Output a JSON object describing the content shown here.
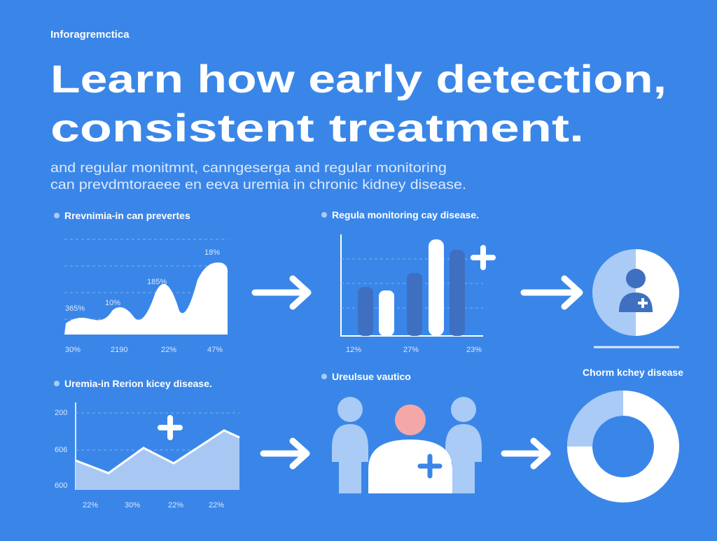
{
  "header": {
    "brand": "Inforagremctica",
    "title": [
      "Learn how early detection,",
      "consistent treatment."
    ],
    "subtitle": [
      "and regular monitmnt, canngeserga and regular monitoring",
      "can prevdmtoraeee en eeva uremia in chronic kidney disease."
    ]
  },
  "panels": [
    {
      "heading": "Rrevnimia-in can prevertes",
      "labels": [
        "18%",
        "185%",
        "10%",
        "365%"
      ],
      "axis_labels": [
        "30%",
        "2190",
        "22%",
        "47%"
      ]
    },
    {
      "heading": "Regula monitoring cay disease.",
      "axis_labels": [
        "12%",
        "27%",
        "23%"
      ]
    },
    {
      "heading": "Uremia-in Rerion kicey disease.",
      "y_labels": [
        "200",
        "606",
        "600"
      ],
      "axis_labels": [
        "22%",
        "30%",
        "22%",
        "22%"
      ]
    },
    {
      "heading": "Ureulsue vautico"
    },
    {
      "heading": "Chorm kchey disease"
    }
  ]
}
